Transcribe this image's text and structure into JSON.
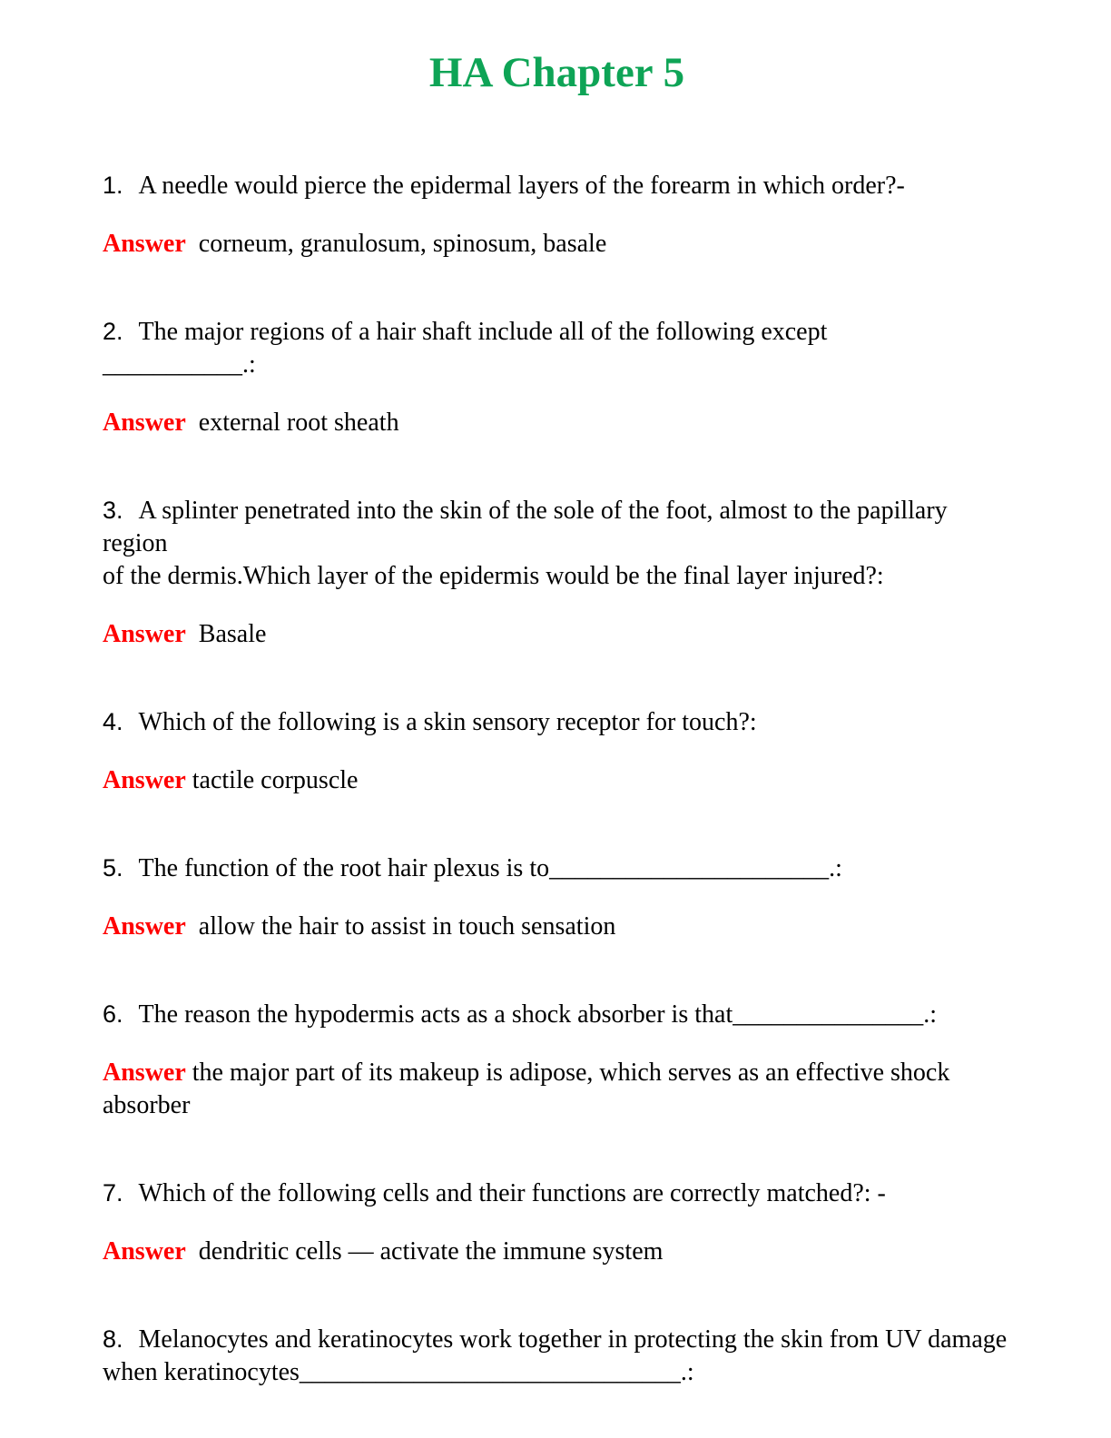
{
  "title": "HA Chapter 5",
  "answer_label": "Answer",
  "colors": {
    "title_green": "#0EA456",
    "answer_red": "#FF0000"
  },
  "questions": [
    {
      "number": "1.",
      "lines": [
        "A needle would pierce the epidermal layers of the forearm in which order?-"
      ],
      "answer_lines": [
        "  corneum, granulosum, spinosum, basale"
      ]
    },
    {
      "number": "2.",
      "lines": [
        "The major regions of a hair shaft include all of the following except",
        "___________.:"
      ],
      "answer_lines": [
        "  external root sheath"
      ]
    },
    {
      "number": "3.",
      "lines": [
        "A splinter penetrated into the skin of the sole of the foot, almost to the papillary region",
        "of the dermis.Which layer of the epidermis would be the final layer injured?:"
      ],
      "answer_lines": [
        "  Basale"
      ]
    },
    {
      "number": "4.",
      "lines": [
        "Which of the following is a skin sensory receptor for touch?:"
      ],
      "answer_lines": [
        " tactile corpuscle"
      ]
    },
    {
      "number": "5.",
      "lines": [
        "The function of the root hair plexus is to______________________.:"
      ],
      "answer_lines": [
        "  allow the hair to assist in touch sensation"
      ]
    },
    {
      "number": "6.",
      "lines": [
        "The reason the hypodermis acts as a shock absorber is that_______________.:"
      ],
      "answer_lines": [
        " the major part of its makeup is adipose, which serves as an effective shock",
        "absorber"
      ]
    },
    {
      "number": "7.",
      "lines": [
        "Which of the following cells and their functions are correctly matched?: -"
      ],
      "answer_lines": [
        "  dendritic cells — activate the immune system"
      ]
    },
    {
      "number": "8.",
      "lines": [
        "Melanocytes and keratinocytes work together in protecting the skin from UV damage",
        "when keratinocytes______________________________.:"
      ],
      "answer_lines": []
    }
  ]
}
